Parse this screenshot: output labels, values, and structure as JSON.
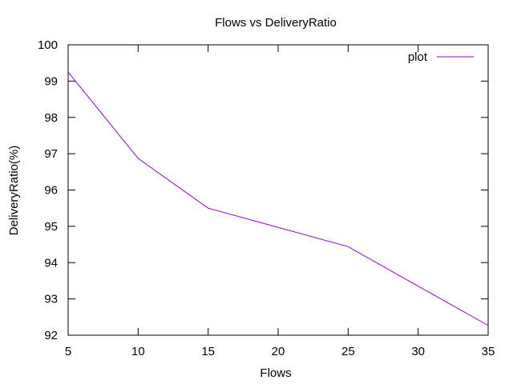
{
  "chart_data": {
    "type": "line",
    "title": "Flows vs DeliveryRatio",
    "xlabel": "Flows",
    "ylabel": "DeliveryRatio(%)",
    "xlim": [
      5,
      35
    ],
    "ylim": [
      92,
      100
    ],
    "xticks": [
      5,
      10,
      15,
      20,
      25,
      30,
      35
    ],
    "yticks": [
      92,
      93,
      94,
      95,
      96,
      97,
      98,
      99,
      100
    ],
    "grid": false,
    "legend_position": "top-right",
    "series": [
      {
        "name": "plot",
        "color": "#9400d3",
        "x": [
          5,
          10,
          15,
          20,
          25,
          30,
          35
        ],
        "y": [
          99.25,
          96.87,
          95.5,
          94.97,
          94.44,
          93.35,
          92.27
        ]
      }
    ]
  }
}
